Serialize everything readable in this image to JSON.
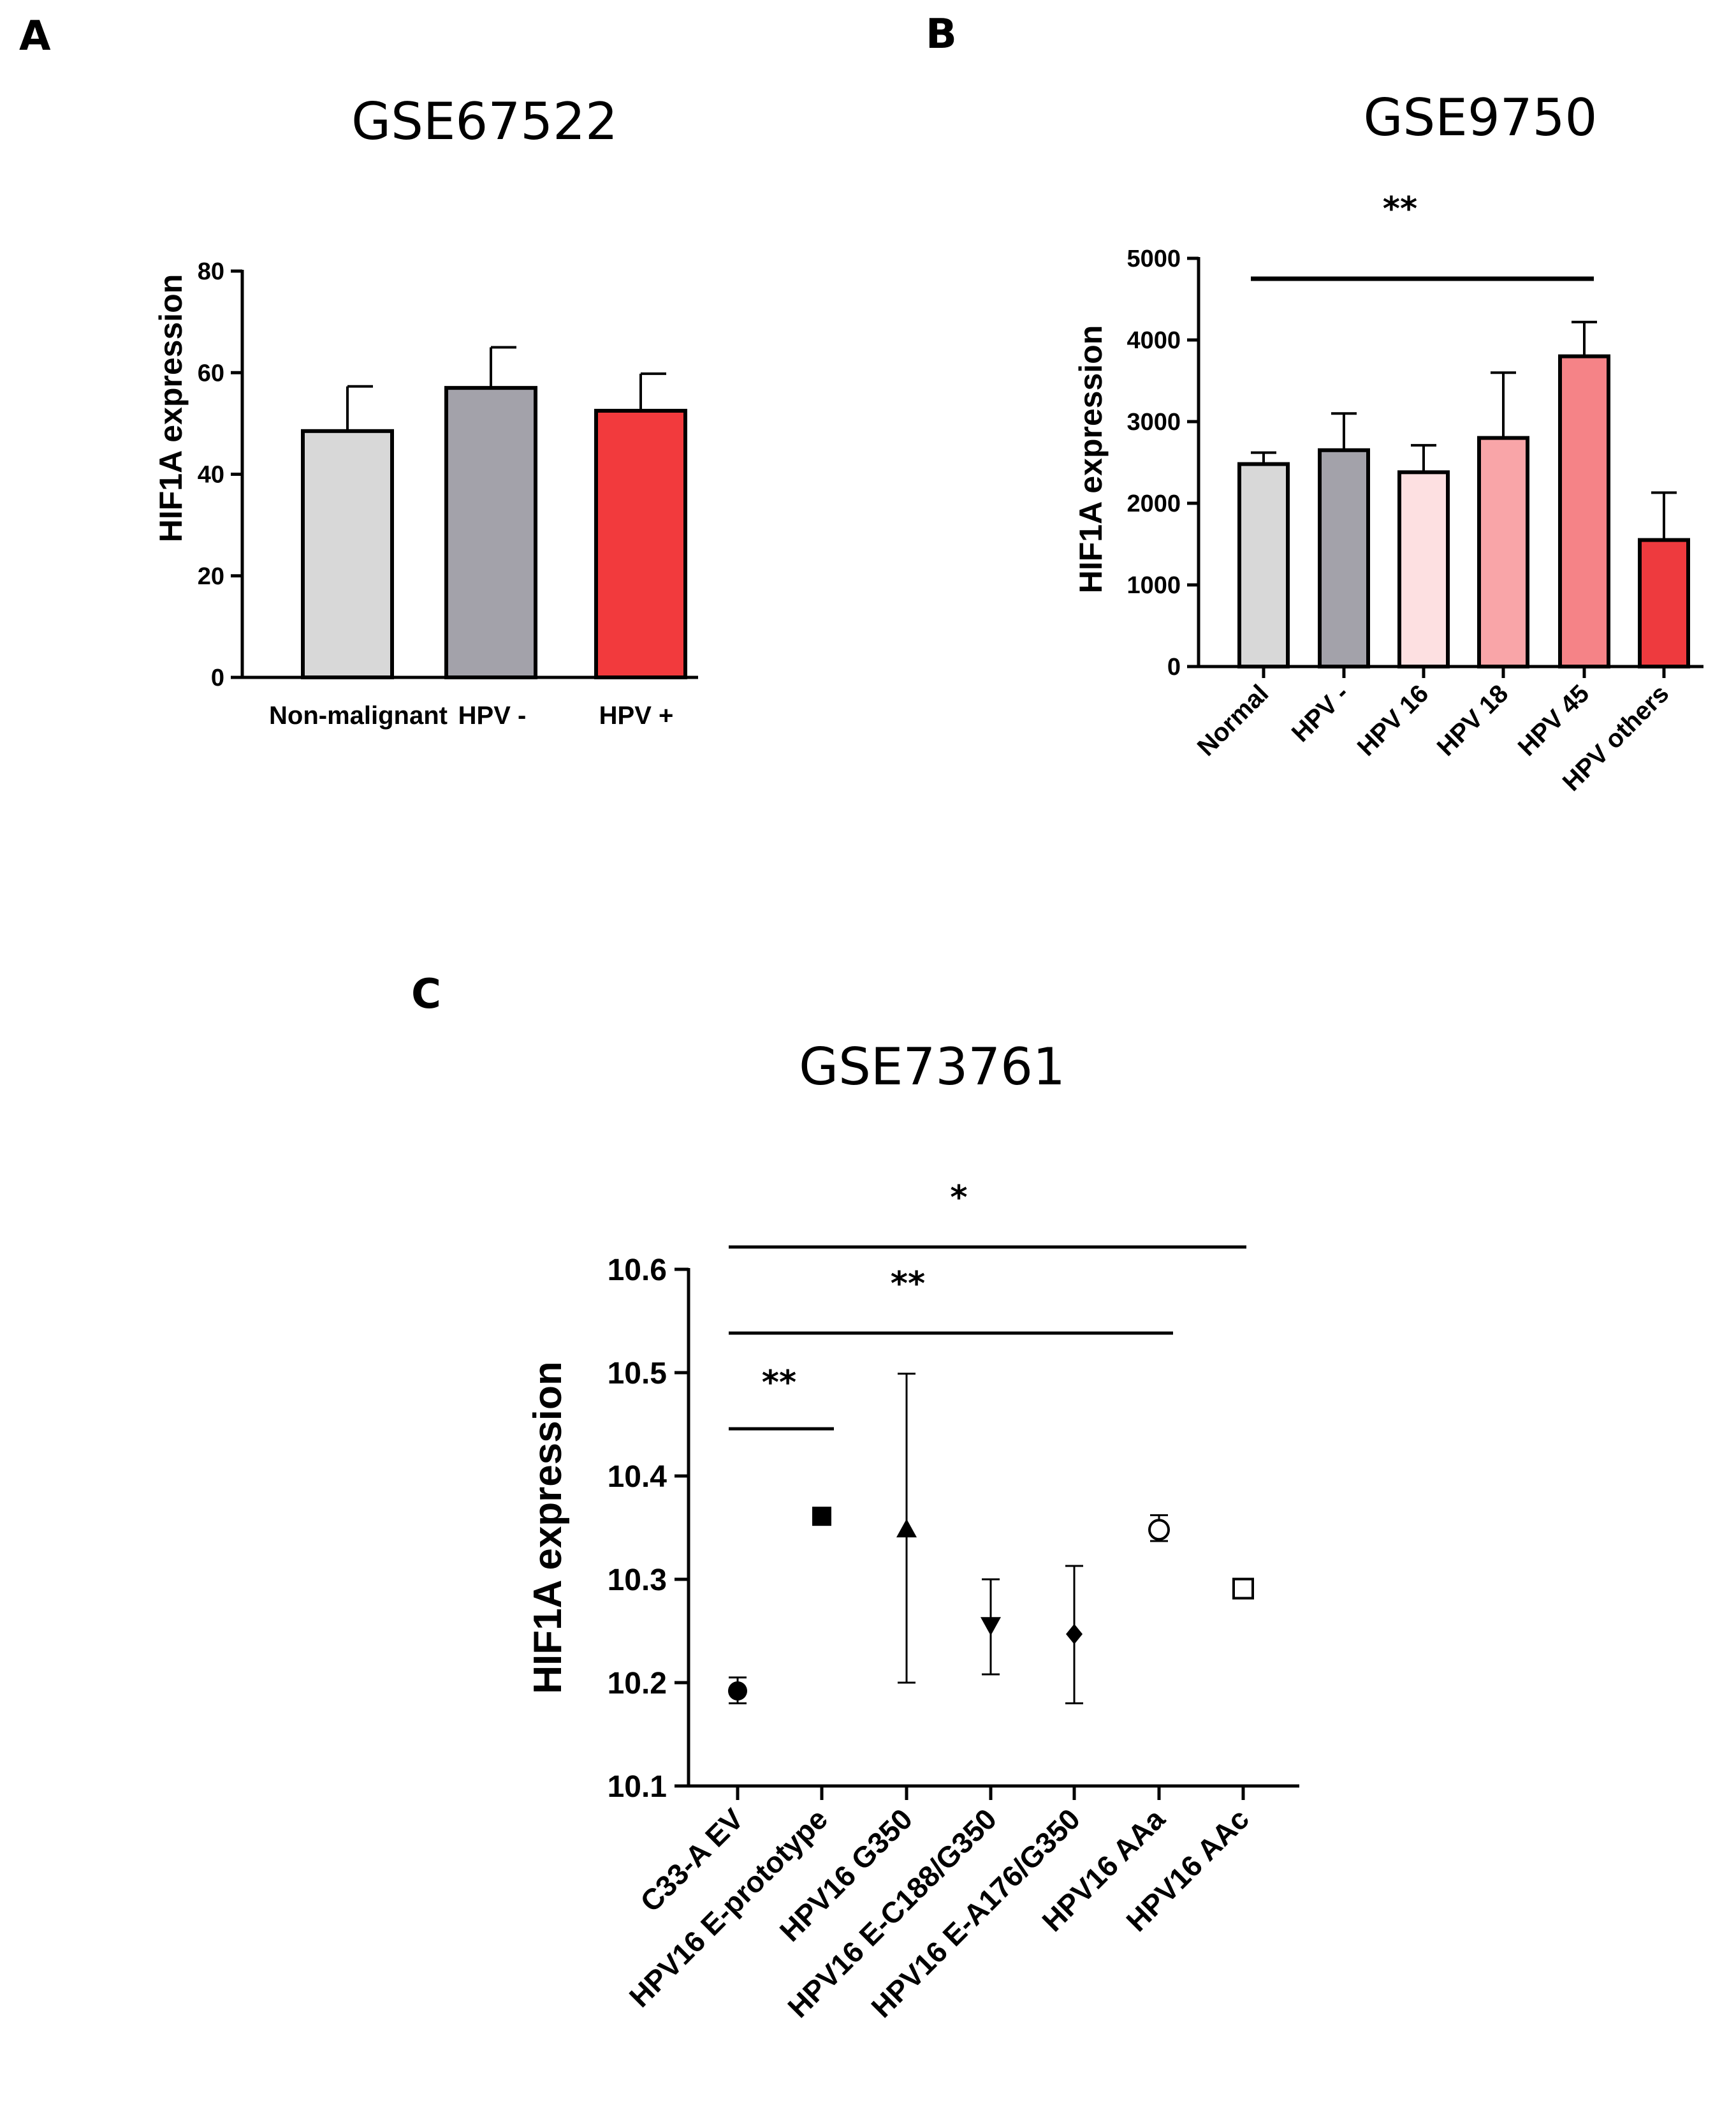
{
  "panels": {
    "a": {
      "letter": "A"
    },
    "b": {
      "letter": "B"
    },
    "c": {
      "letter": "C"
    }
  },
  "chart_data": [
    {
      "type": "bar",
      "panel": "A",
      "title": "GSE67522",
      "ylabel": "HIF1A expression",
      "xlabel": "",
      "ylim": [
        0,
        80
      ],
      "yticks": [
        0,
        20,
        40,
        60,
        80
      ],
      "categories": [
        "Non-malignant",
        "HPV -",
        "HPV +"
      ],
      "values": [
        48.5,
        57,
        52.5
      ],
      "errors": [
        8.8,
        8,
        7.3
      ],
      "colors": [
        "#d8d8d8",
        "#a3a2aa",
        "#f23a3d"
      ],
      "significance": []
    },
    {
      "type": "bar",
      "panel": "B",
      "title": "GSE9750",
      "ylabel": "HIF1A expression",
      "xlabel": "",
      "ylim": [
        0,
        5000
      ],
      "yticks": [
        0,
        1000,
        2000,
        3000,
        4000,
        5000
      ],
      "categories": [
        "Normal",
        "HPV -",
        "HPV 16",
        "HPV 18",
        "HPV 45",
        "HPV others"
      ],
      "values": [
        2480,
        2650,
        2380,
        2800,
        3800,
        1550
      ],
      "errors": [
        140,
        450,
        330,
        800,
        420,
        580
      ],
      "colors": [
        "#d8d8d8",
        "#a3a2aa",
        "#fde0e1",
        "#f9a5a8",
        "#f58387",
        "#ee3a3e"
      ],
      "significance": [
        {
          "label": "**",
          "from": "Normal",
          "to": "HPV 45"
        }
      ]
    },
    {
      "type": "scatter",
      "panel": "C",
      "title": "GSE73761",
      "ylabel": "HIF1A expression",
      "xlabel": "",
      "ylim": [
        10.1,
        10.6
      ],
      "yticks": [
        10.1,
        10.2,
        10.3,
        10.4,
        10.5,
        10.6
      ],
      "categories": [
        "C33-A EV",
        "HPV16 E-prototype",
        "HPV16 G350",
        "HPV16 E-C188/G350",
        "HPV16 E-A176/G350",
        "HPV16 AAa",
        "HPV16 AAc"
      ],
      "values": [
        10.192,
        10.361,
        10.348,
        10.256,
        10.247,
        10.348,
        10.291
      ],
      "err_low": [
        10.18,
        10.361,
        10.2,
        10.208,
        10.18,
        10.337,
        10.291
      ],
      "err_high": [
        10.205,
        10.361,
        10.499,
        10.3,
        10.313,
        10.362,
        10.291
      ],
      "markers": [
        "circle",
        "square",
        "triangle",
        "triangle-down",
        "diamond",
        "circle-open",
        "square-open"
      ],
      "significance": [
        {
          "label": "**",
          "from": "C33-A EV",
          "to": "HPV16 E-prototype"
        },
        {
          "label": "**",
          "from": "C33-A EV",
          "to": "HPV16 AAa"
        },
        {
          "label": "*",
          "from": "C33-A EV",
          "to": "HPV16 AAc"
        }
      ]
    }
  ]
}
